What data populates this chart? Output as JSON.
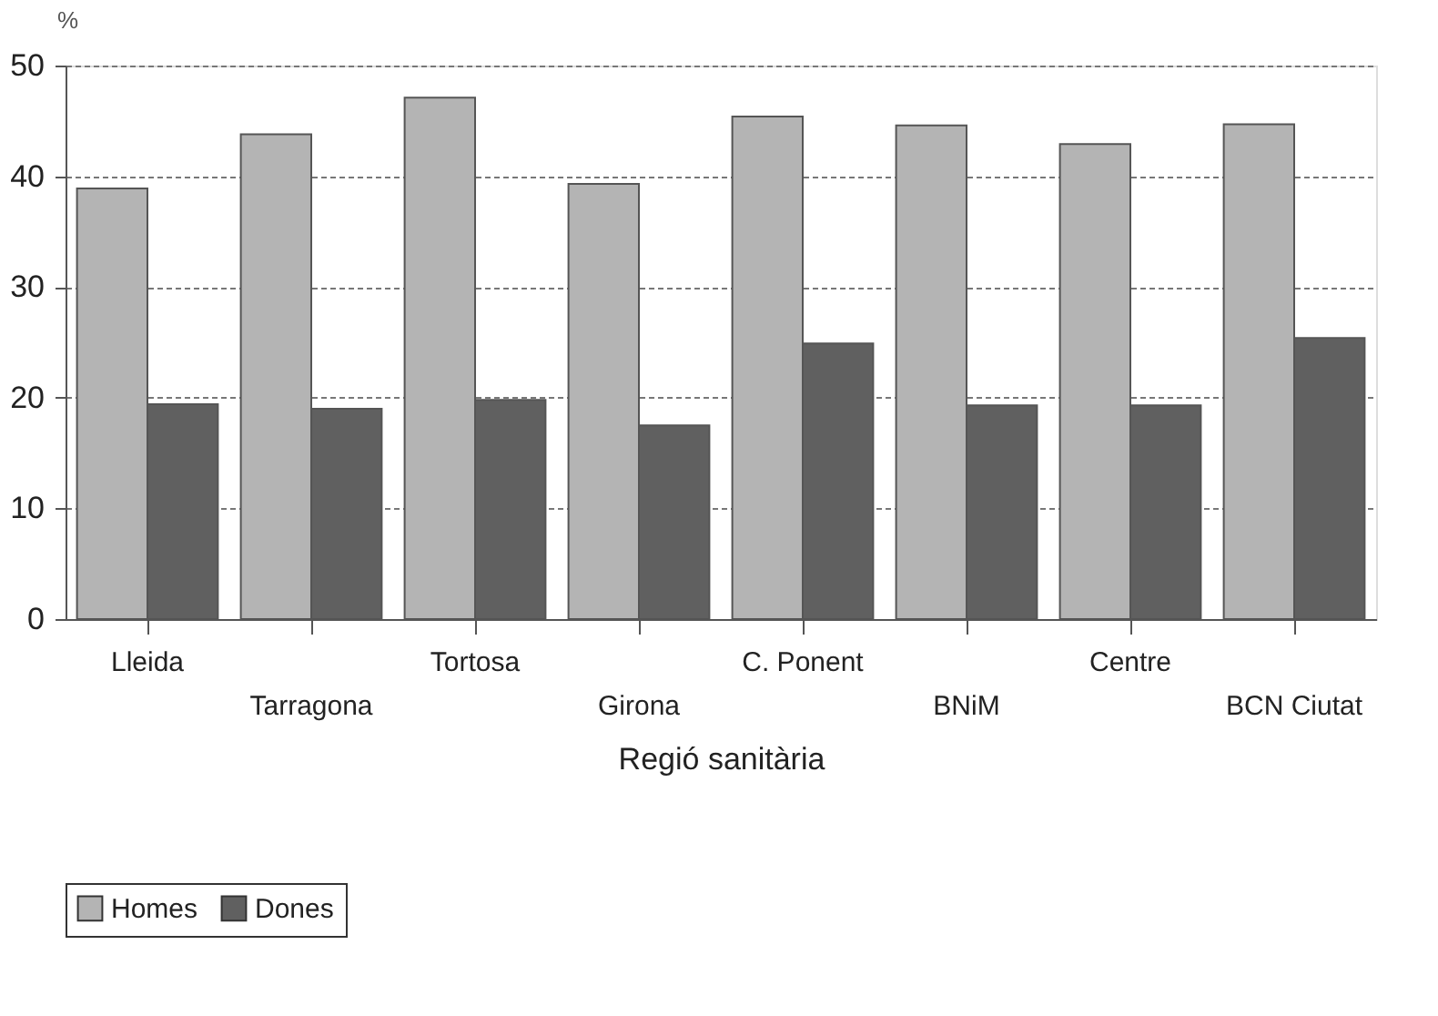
{
  "chart_data": {
    "type": "bar",
    "xlabel": "Regió sanitària",
    "ylabel": "%",
    "categories": [
      "Lleida",
      "Tarragona",
      "Tortosa",
      "Girona",
      "C. Ponent",
      "BNiM",
      "Centre",
      "BCN Ciutat"
    ],
    "series": [
      {
        "name": "Homes",
        "color": "#b4b4b4",
        "values": [
          38.9,
          43.8,
          47.1,
          39.3,
          45.4,
          44.6,
          42.9,
          44.7
        ]
      },
      {
        "name": "Dones",
        "color": "#606060",
        "values": [
          19.4,
          19.0,
          19.8,
          17.5,
          24.9,
          19.3,
          19.3,
          25.4
        ]
      }
    ],
    "ylim": [
      0,
      50
    ],
    "yticks": [
      0,
      10,
      20,
      30,
      40,
      50
    ],
    "grid": "y",
    "legend": "bottom"
  }
}
